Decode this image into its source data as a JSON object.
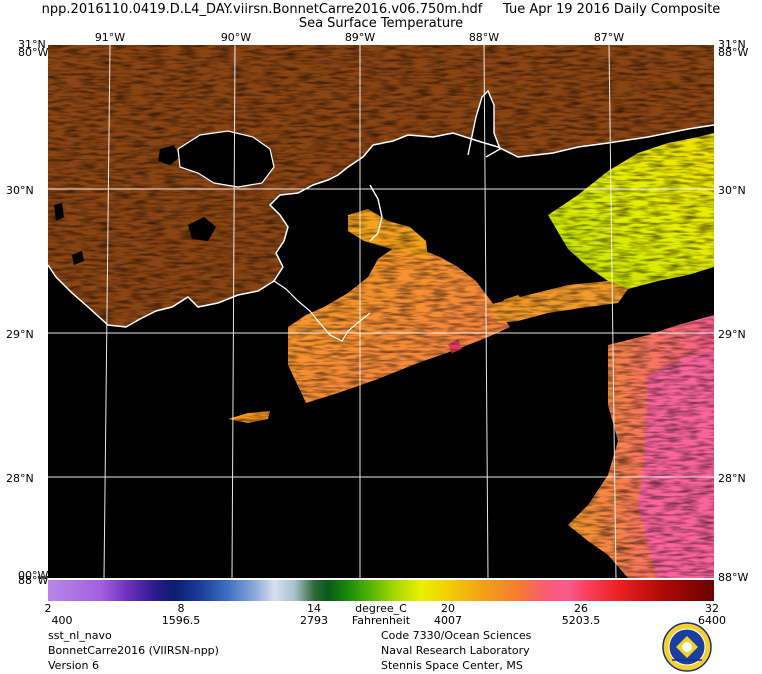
{
  "header": {
    "title_line1": "npp.2016110.0419.D.L4_DAY.viirsn.BonnetCarre2016.v06.750m.hdf     Tue Apr 19 2016 Daily Composite",
    "title_line2": "Sea Surface Temperature"
  },
  "map": {
    "longitude_labels_top": [
      "91°W",
      "90°W",
      "89°W",
      "88°W",
      "87°W"
    ],
    "latitude_labels": [
      "30°N",
      "29°N",
      "28°N"
    ],
    "corner_labels": {
      "top_left": "31°N",
      "top_left_overlay": "80°W",
      "top_right": "31°N",
      "top_right_overlay": "88°W",
      "bottom_left": "00°W",
      "bottom_left_overlay": "88°W",
      "bottom_right": "88°W"
    },
    "land_color": "#8b4513",
    "nodata_color": "#000000",
    "coastline_color": "#ffffff"
  },
  "colorbar": {
    "celsius_ticks": [
      "2",
      "8",
      "14",
      "20",
      "26",
      "32"
    ],
    "unit_celsius": "degree_C",
    "fahrenheit_ticks": [
      "400",
      "1596.5",
      "2793",
      "4007",
      "5203.5",
      "6400"
    ],
    "unit_fahrenheit": "Fahrenheit"
  },
  "footer": {
    "left_line1": "sst_nl_navo",
    "left_line2": "BonnetCarre2016 (VIIRSN-npp)",
    "left_line3": "Version 6",
    "right_line1": "Code 7330/Ocean Sciences",
    "right_line2": "Naval Research Laboratory",
    "right_line3": "Stennis Space Center, MS",
    "seal_icon": "nrl-seal-icon"
  }
}
